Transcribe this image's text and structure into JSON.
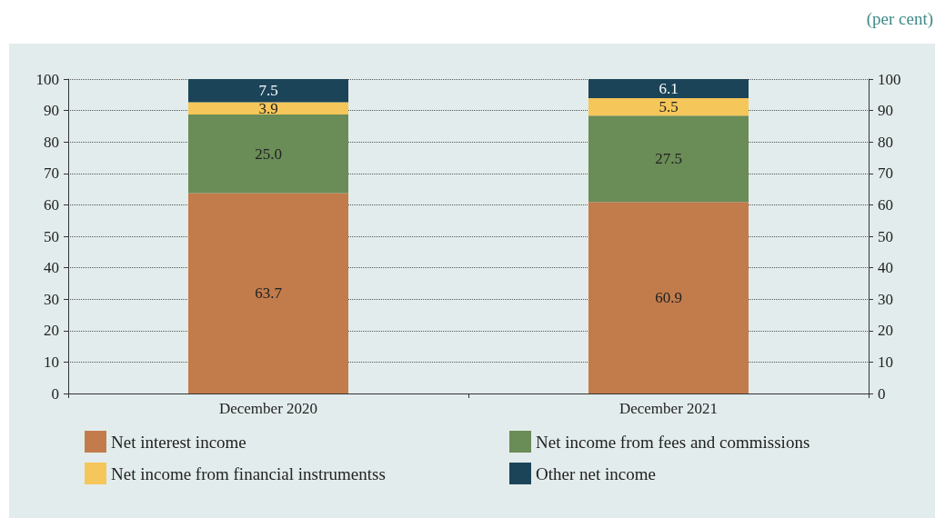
{
  "chart_data": {
    "type": "bar",
    "stacked": true,
    "categories": [
      "December 2020",
      "December 2021"
    ],
    "series": [
      {
        "name": "Net interest income",
        "color": "#c27c4c",
        "values": [
          63.7,
          60.9
        ],
        "value_labels": [
          "63.7",
          "60.9"
        ]
      },
      {
        "name": "Net income from fees and commissions",
        "color": "#6a8c57",
        "values": [
          25.0,
          27.5
        ],
        "value_labels": [
          "25.0",
          "27.5"
        ]
      },
      {
        "name": "Net income from financial instrumentss",
        "color": "#f5c75a",
        "values": [
          3.9,
          5.5
        ],
        "value_labels": [
          "3.9",
          "5.5"
        ]
      },
      {
        "name": "Other net income",
        "color": "#1b4458",
        "values": [
          7.5,
          6.1
        ],
        "value_labels": [
          "7.5",
          "6.1"
        ]
      }
    ],
    "ylim": [
      0,
      100
    ],
    "yticks": [
      0,
      10,
      20,
      30,
      40,
      50,
      60,
      70,
      80,
      90,
      100
    ],
    "y2lim": [
      0,
      100
    ],
    "y2ticks": [
      0,
      10,
      20,
      30,
      40,
      50,
      60,
      70,
      80,
      90,
      100
    ],
    "grid": "y",
    "legend": "bottom",
    "annotations": [
      "(per cent)"
    ]
  }
}
